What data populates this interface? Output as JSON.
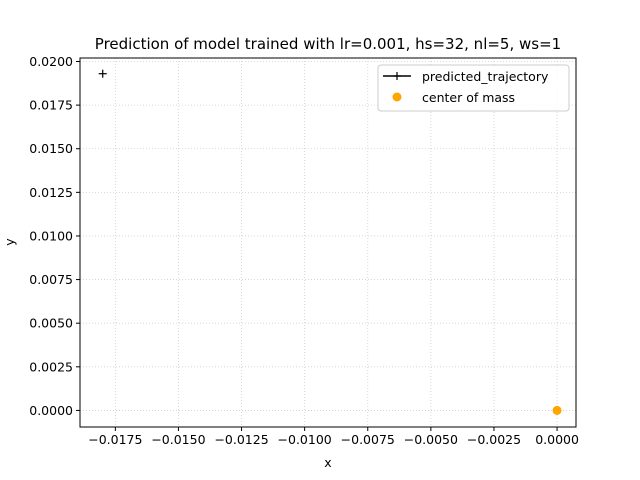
{
  "chart_data": {
    "type": "scatter",
    "title": "Prediction of model trained with lr=0.001, hs=32, nl=5, ws=1",
    "xlabel": "x",
    "ylabel": "y",
    "xlim": [
      -0.0189,
      0.00075
    ],
    "ylim": [
      -0.00095,
      0.0202
    ],
    "xticks": [
      -0.0175,
      -0.015,
      -0.0125,
      -0.01,
      -0.0075,
      -0.005,
      -0.0025,
      0.0
    ],
    "xtick_labels": [
      "−0.0175",
      "−0.0150",
      "−0.0125",
      "−0.0100",
      "−0.0075",
      "−0.0050",
      "−0.0025",
      "0.0000"
    ],
    "yticks": [
      0.0,
      0.0025,
      0.005,
      0.0075,
      0.01,
      0.0125,
      0.015,
      0.0175,
      0.02
    ],
    "ytick_labels": [
      "0.0000",
      "0.0025",
      "0.0050",
      "0.0075",
      "0.0100",
      "0.0125",
      "0.0150",
      "0.0175",
      "0.0200"
    ],
    "grid": true,
    "legend_position": "top-right",
    "series": [
      {
        "name": "predicted_trajectory",
        "marker": "plus",
        "color": "#000000",
        "points": [
          {
            "x": -0.018,
            "y": 0.0193
          }
        ]
      },
      {
        "name": "center of mass",
        "marker": "circle",
        "color": "#ffa500",
        "points": [
          {
            "x": 0.0,
            "y": 0.0
          }
        ]
      }
    ]
  }
}
